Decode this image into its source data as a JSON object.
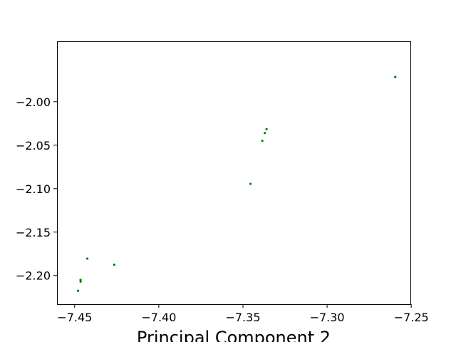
{
  "chart_data": {
    "type": "scatter",
    "title": "",
    "xlabel": "Principal Component 2",
    "ylabel": "",
    "xlim": [
      -7.4605,
      -7.2505
    ],
    "ylim": [
      -2.233,
      -1.9305
    ],
    "x_ticks": [
      -7.45,
      -7.4,
      -7.35,
      -7.3,
      -7.25
    ],
    "x_tick_labels": [
      "−7.45",
      "−7.40",
      "−7.35",
      "−7.30",
      "−7.25"
    ],
    "y_ticks": [
      -2.0,
      -2.05,
      -2.1,
      -2.15,
      -2.2
    ],
    "y_tick_labels": [
      "−2.00",
      "−2.05",
      "−2.10",
      "−2.15",
      "−2.20"
    ],
    "grid": false,
    "legend": "none",
    "marker_color": "#008000",
    "points": [
      {
        "x": -7.2595,
        "y": -1.9715
      },
      {
        "x": -7.336,
        "y": -2.0315
      },
      {
        "x": -7.337,
        "y": -2.036
      },
      {
        "x": -7.3385,
        "y": -2.045
      },
      {
        "x": -7.3455,
        "y": -2.0945
      },
      {
        "x": -7.4425,
        "y": -2.1805
      },
      {
        "x": -7.4265,
        "y": -2.1875
      },
      {
        "x": -7.4465,
        "y": -2.205
      },
      {
        "x": -7.4465,
        "y": -2.207
      },
      {
        "x": -7.448,
        "y": -2.2175
      }
    ]
  }
}
